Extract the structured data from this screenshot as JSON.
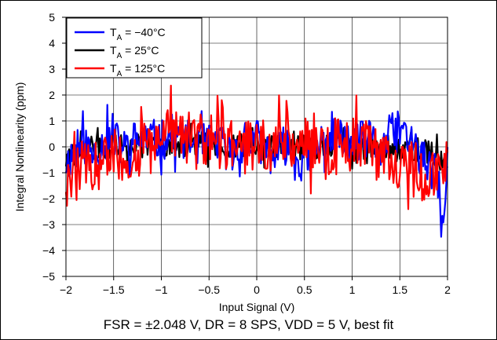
{
  "chart_data": {
    "type": "line",
    "xlabel": "Input Signal (V)",
    "ylabel": "Integral Nonlinearity (ppm)",
    "caption": "FSR = ±2.048 V, DR = 8 SPS, VDD = 5 V, best fit",
    "xlim": [
      -2,
      2
    ],
    "ylim": [
      -5,
      5
    ],
    "xticks": [
      "−2",
      "−1.5",
      "−1",
      "−0.5",
      "0",
      "0.5",
      "1",
      "1.5",
      "2"
    ],
    "yticks": [
      "5",
      "4",
      "3",
      "2",
      "1",
      "0",
      "−1",
      "−2",
      "−3",
      "−4",
      "−5"
    ],
    "xtick_values": [
      -2,
      -1.5,
      -1,
      -0.5,
      0,
      0.5,
      1,
      1.5,
      2
    ],
    "ytick_values": [
      5,
      4,
      3,
      2,
      1,
      0,
      -1,
      -2,
      -3,
      -4,
      -5
    ],
    "grid": true,
    "legend_position": "top-left",
    "series": [
      {
        "name": "T<sub>A</sub> = −40°C",
        "label_main": "T",
        "label_sub": "A",
        "label_rest": " = −40°C",
        "color": "#0000ff",
        "x": [
          -2.0,
          -1.9,
          -1.8,
          -1.7,
          -1.6,
          -1.5,
          -1.4,
          -1.3,
          -1.2,
          -1.1,
          -1.0,
          -0.9,
          -0.8,
          -0.7,
          -0.6,
          -0.5,
          -0.4,
          -0.3,
          -0.2,
          -0.1,
          0.0,
          0.1,
          0.2,
          0.3,
          0.4,
          0.5,
          0.6,
          0.7,
          0.8,
          0.9,
          1.0,
          1.1,
          1.2,
          1.3,
          1.4,
          1.5,
          1.6,
          1.7,
          1.8,
          1.9,
          1.95,
          2.0
        ],
        "values": [
          -0.6,
          -0.2,
          0.1,
          -0.3,
          0.2,
          0.3,
          -0.1,
          0.2,
          0.4,
          0.3,
          0.2,
          0.5,
          0.3,
          0.2,
          0.1,
          0.1,
          0.2,
          -0.2,
          0.0,
          0.1,
          0.3,
          -0.1,
          -0.4,
          0.1,
          -0.5,
          -0.6,
          -0.3,
          0.3,
          0.6,
          0.2,
          0.1,
          0.2,
          0.3,
          -0.2,
          0.5,
          0.6,
          0.4,
          -0.3,
          -0.8,
          -1.2,
          -3.5,
          -0.6
        ],
        "range_band": 0.8
      },
      {
        "name": "T<sub>A</sub> = 25°C",
        "label_main": "T",
        "label_sub": "A",
        "label_rest": " = 25°C",
        "color": "#000000",
        "x": [
          -2.0,
          -1.9,
          -1.8,
          -1.7,
          -1.6,
          -1.5,
          -1.4,
          -1.3,
          -1.2,
          -1.1,
          -1.0,
          -0.9,
          -0.8,
          -0.7,
          -0.6,
          -0.5,
          -0.4,
          -0.3,
          -0.2,
          -0.1,
          0.0,
          0.1,
          0.2,
          0.3,
          0.4,
          0.5,
          0.6,
          0.7,
          0.8,
          0.9,
          1.0,
          1.1,
          1.2,
          1.3,
          1.4,
          1.5,
          1.6,
          1.7,
          1.8,
          1.9,
          2.0
        ],
        "values": [
          -0.5,
          -0.3,
          -0.1,
          0.0,
          -0.1,
          0.1,
          0.0,
          0.1,
          0.0,
          0.2,
          0.1,
          0.2,
          0.0,
          0.1,
          0.2,
          0.0,
          0.1,
          0.0,
          0.1,
          0.0,
          0.0,
          -0.1,
          0.0,
          0.1,
          0.0,
          0.0,
          -0.1,
          0.0,
          0.1,
          0.0,
          0.0,
          -0.1,
          0.0,
          0.1,
          0.0,
          -0.2,
          0.0,
          -0.1,
          -0.2,
          -0.4,
          -0.6
        ],
        "range_band": 0.5
      },
      {
        "name": "T<sub>A</sub> = 125°C",
        "label_main": "T",
        "label_sub": "A",
        "label_rest": " = 125°C",
        "color": "#ff0000",
        "x": [
          -2.0,
          -1.9,
          -1.8,
          -1.7,
          -1.6,
          -1.5,
          -1.4,
          -1.3,
          -1.2,
          -1.1,
          -1.0,
          -0.9,
          -0.8,
          -0.7,
          -0.6,
          -0.5,
          -0.4,
          -0.3,
          -0.2,
          -0.1,
          0.0,
          0.1,
          0.2,
          0.3,
          0.4,
          0.5,
          0.6,
          0.7,
          0.8,
          0.9,
          1.0,
          1.1,
          1.2,
          1.3,
          1.4,
          1.5,
          1.6,
          1.7,
          1.8,
          1.9,
          2.0
        ],
        "values": [
          -1.2,
          -1.0,
          -0.7,
          -1.0,
          -0.6,
          -0.5,
          -0.5,
          -0.3,
          0.0,
          0.2,
          0.6,
          0.5,
          0.4,
          0.3,
          0.2,
          0.1,
          0.2,
          0.0,
          0.1,
          0.0,
          0.1,
          0.0,
          0.2,
          0.3,
          0.1,
          0.2,
          0.1,
          -0.2,
          0.0,
          0.1,
          0.1,
          0.0,
          -0.2,
          -0.3,
          -0.4,
          -0.6,
          -0.8,
          -0.9,
          -1.2,
          -0.9,
          -0.9
        ],
        "range_band": 1.1
      }
    ]
  }
}
